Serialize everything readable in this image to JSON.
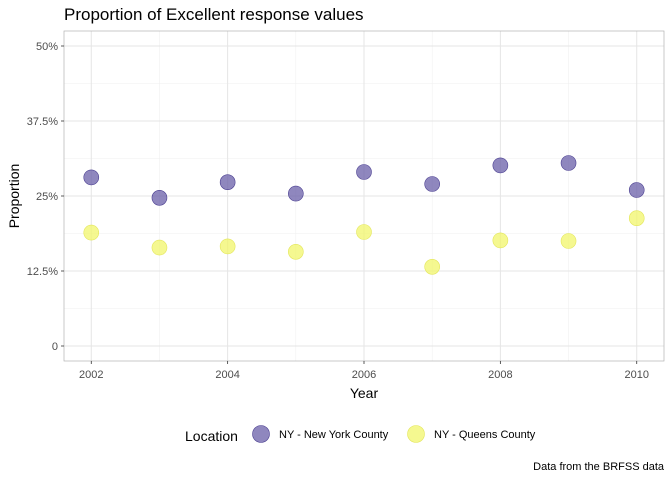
{
  "chart_data": {
    "type": "scatter",
    "title": "Proportion of Excellent response values",
    "xlabel": "Year",
    "ylabel": "Proportion",
    "caption": "Data from the BRFSS data",
    "x_ticks": [
      2002,
      2004,
      2006,
      2008,
      2010
    ],
    "y_ticks": [
      0,
      0.125,
      0.25,
      0.375,
      0.5
    ],
    "y_tick_labels": [
      "0",
      "12.5%",
      "25%",
      "37.5%",
      "50%"
    ],
    "xlim": [
      2001.6,
      2010.4
    ],
    "ylim": [
      -0.025,
      0.525
    ],
    "grid": true,
    "legend": {
      "title": "Location",
      "placement": "bottom"
    },
    "x": [
      2002,
      2003,
      2004,
      2005,
      2006,
      2007,
      2008,
      2009,
      2010
    ],
    "series": [
      {
        "name": "NY - New York County",
        "color": "#6a5fa8",
        "values": [
          0.281,
          0.247,
          0.273,
          0.254,
          0.29,
          0.27,
          0.301,
          0.305,
          0.26
        ]
      },
      {
        "name": "NY - Queens County",
        "color": "#f2f56b",
        "values": [
          0.189,
          0.164,
          0.166,
          0.157,
          0.19,
          0.132,
          0.176,
          0.175,
          0.213
        ]
      }
    ]
  }
}
